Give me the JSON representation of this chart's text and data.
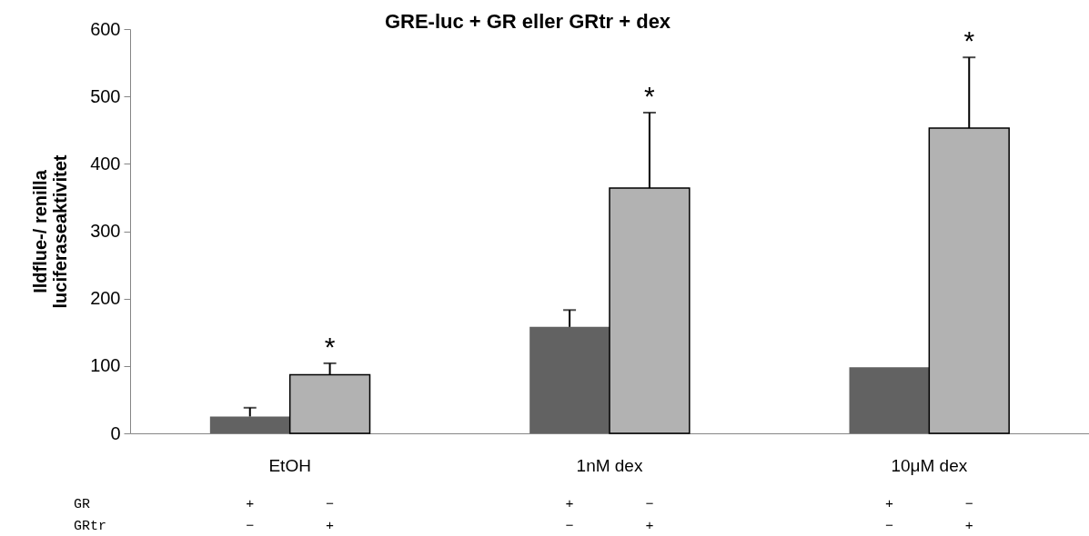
{
  "chart_data": {
    "type": "bar",
    "title": "GRE-luc + GR eller GRtr + dex",
    "ylabel": "Ildflue-/ renilla\nluciferaseaktivitet",
    "categories": [
      "EtOH",
      "1nM dex",
      "10μM dex"
    ],
    "series": [
      {
        "color": "#626262",
        "values": [
          25,
          158,
          98
        ],
        "errors": [
          [
            25,
            38
          ],
          [
            158,
            183
          ],
          null
        ]
      },
      {
        "color": "#b2b2b2",
        "values": [
          87,
          364,
          453
        ],
        "errors": [
          [
            87,
            104
          ],
          [
            364,
            476
          ],
          [
            453,
            558
          ]
        ]
      }
    ],
    "ylim": [
      0,
      600
    ],
    "yticks": [
      0,
      100,
      200,
      300,
      400,
      500,
      600
    ],
    "grid": false,
    "legend": false,
    "annotations": [
      "*",
      "*",
      "*",
      "GR",
      "+",
      "−",
      "+",
      "−",
      "+",
      "−",
      "GRtr",
      "−",
      "+",
      "−",
      "+",
      "−",
      "+"
    ]
  }
}
